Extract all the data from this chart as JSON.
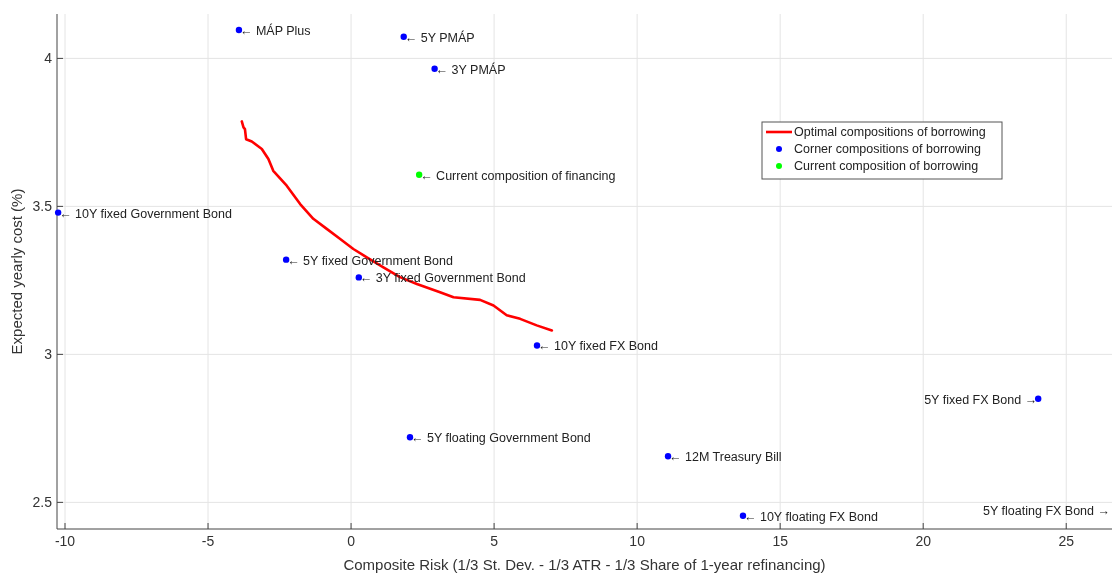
{
  "chart_data": {
    "type": "scatter",
    "xlabel": "Composite Risk (1/3 St. Dev. - 1/3 ATR - 1/3 Share of 1-year refinancing)",
    "ylabel": "Expected yearly cost (%)",
    "xlim": [
      -10.28,
      26.6
    ],
    "ylim": [
      2.41,
      4.15
    ],
    "xticks": [
      -10,
      -5,
      0,
      5,
      10,
      15,
      20,
      25
    ],
    "yticks": [
      2.5,
      3,
      3.5,
      4
    ],
    "grid": true,
    "legend": "top right",
    "series": [
      {
        "name": "Optimal compositions of borrowing",
        "type": "line",
        "line_style": "solid",
        "marker": "none",
        "color": "#ff0000",
        "x": [
          -3.82,
          -3.76,
          -3.71,
          -3.67,
          -3.47,
          -3.12,
          -2.89,
          -2.72,
          -2.25,
          -1.78,
          -1.32,
          -0.85,
          -0.38,
          0.08,
          0.55,
          1.13,
          1.71,
          2.3,
          3.11,
          3.58,
          4.51,
          4.98,
          5.44,
          5.91,
          6.49,
          7.02
        ],
        "values": [
          3.787,
          3.767,
          3.761,
          3.727,
          3.719,
          3.694,
          3.66,
          3.62,
          3.57,
          3.508,
          3.458,
          3.424,
          3.39,
          3.356,
          3.328,
          3.294,
          3.261,
          3.238,
          3.21,
          3.193,
          3.184,
          3.165,
          3.132,
          3.12,
          3.098,
          3.081
        ]
      },
      {
        "name": "Corner compositions of borrowing",
        "marker": "circle",
        "color": "#0000ff",
        "x": [
          -3.92,
          1.84,
          2.92,
          -10.24,
          -2.27,
          0.27,
          6.5,
          24.02,
          2.06,
          11.08,
          13.7
        ],
        "values": [
          4.096,
          4.073,
          3.965,
          3.479,
          3.32,
          3.26,
          3.03,
          2.85,
          2.72,
          2.656,
          2.455
        ]
      },
      {
        "name": "Current composition of borrowing",
        "marker": "circle",
        "color": "#00ff00",
        "x": [
          2.38
        ],
        "values": [
          3.607
        ]
      }
    ],
    "annotations": [
      {
        "text": "← MÁP Plus",
        "x": -3.92,
        "y": 4.096
      },
      {
        "text": "← 5Y PMÁP",
        "x": 1.84,
        "y": 4.073
      },
      {
        "text": "← 3Y PMÁP",
        "x": 2.92,
        "y": 3.965
      },
      {
        "text": "← Current composition of financing",
        "x": 2.38,
        "y": 3.607
      },
      {
        "text": "← 10Y fixed Government Bond",
        "x": -10.24,
        "y": 3.479
      },
      {
        "text": "← 5Y fixed Government Bond",
        "x": -2.27,
        "y": 3.32
      },
      {
        "text": "← 3Y fixed Government Bond",
        "x": 0.27,
        "y": 3.26
      },
      {
        "text": "← 10Y fixed FX Bond",
        "x": 6.5,
        "y": 3.03
      },
      {
        "text": "5Y fixed FX Bond →",
        "x": 24.02,
        "y": 2.85
      },
      {
        "text": "← 5Y floating Government Bond",
        "x": 2.06,
        "y": 2.72
      },
      {
        "text": "← 12M Treasury Bill",
        "x": 11.08,
        "y": 2.656
      },
      {
        "text": "← 10Y floating FX Bond",
        "x": 13.7,
        "y": 2.455
      },
      "5Y floating FX Bond →"
    ]
  }
}
